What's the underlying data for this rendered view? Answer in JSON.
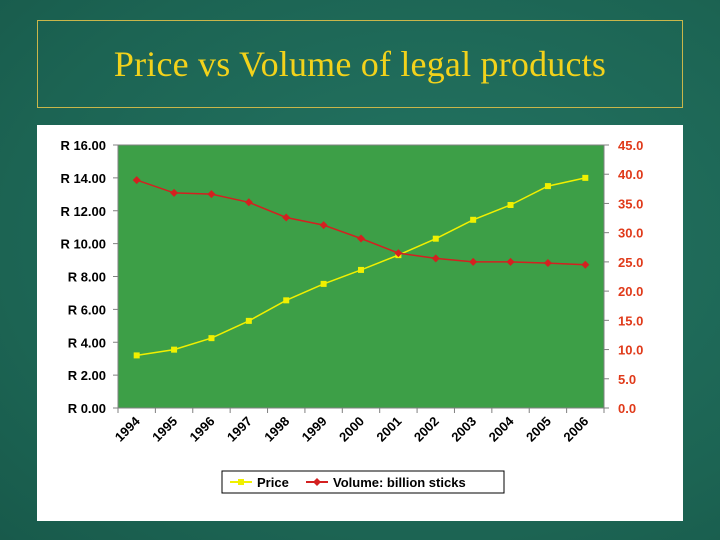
{
  "title": "Price vs Volume of legal products",
  "colors": {
    "background": "#1f6b5a",
    "title": "#f2d21b",
    "plot_area": "#3d9f47",
    "chart_area": "#ffffff",
    "price_series": "#f0f000",
    "volume_series": "#d42020",
    "right_axis_text": "#e03a1a"
  },
  "chart_data": {
    "type": "line",
    "x": [
      "1994",
      "1995",
      "1996",
      "1997",
      "1998",
      "1999",
      "2000",
      "2001",
      "2002",
      "2003",
      "2004",
      "2005",
      "2006"
    ],
    "series": [
      {
        "name": "Price",
        "axis": "left",
        "marker": "square",
        "values": [
          3.2,
          3.55,
          4.25,
          5.3,
          6.55,
          7.55,
          8.4,
          9.3,
          10.3,
          11.45,
          12.35,
          13.5,
          14.0
        ]
      },
      {
        "name": "Volume: billion sticks",
        "axis": "right",
        "marker": "diamond",
        "values": [
          39.0,
          36.8,
          36.6,
          35.2,
          32.6,
          31.3,
          29.0,
          26.5,
          25.6,
          25.0,
          25.0,
          24.8,
          24.5
        ]
      }
    ],
    "left_axis": {
      "ylim": [
        0,
        16
      ],
      "ticks": [
        "R 0.00",
        "R 2.00",
        "R 4.00",
        "R 6.00",
        "R 8.00",
        "R 10.00",
        "R 12.00",
        "R 14.00",
        "R 16.00"
      ]
    },
    "right_axis": {
      "ylim": [
        0,
        45
      ],
      "ticks": [
        "0.0",
        "5.0",
        "10.0",
        "15.0",
        "20.0",
        "25.0",
        "30.0",
        "35.0",
        "40.0",
        "45.0"
      ]
    },
    "grid": false,
    "legend": {
      "placement": "bottom",
      "entries": [
        "Price",
        "Volume: billion sticks"
      ]
    }
  }
}
